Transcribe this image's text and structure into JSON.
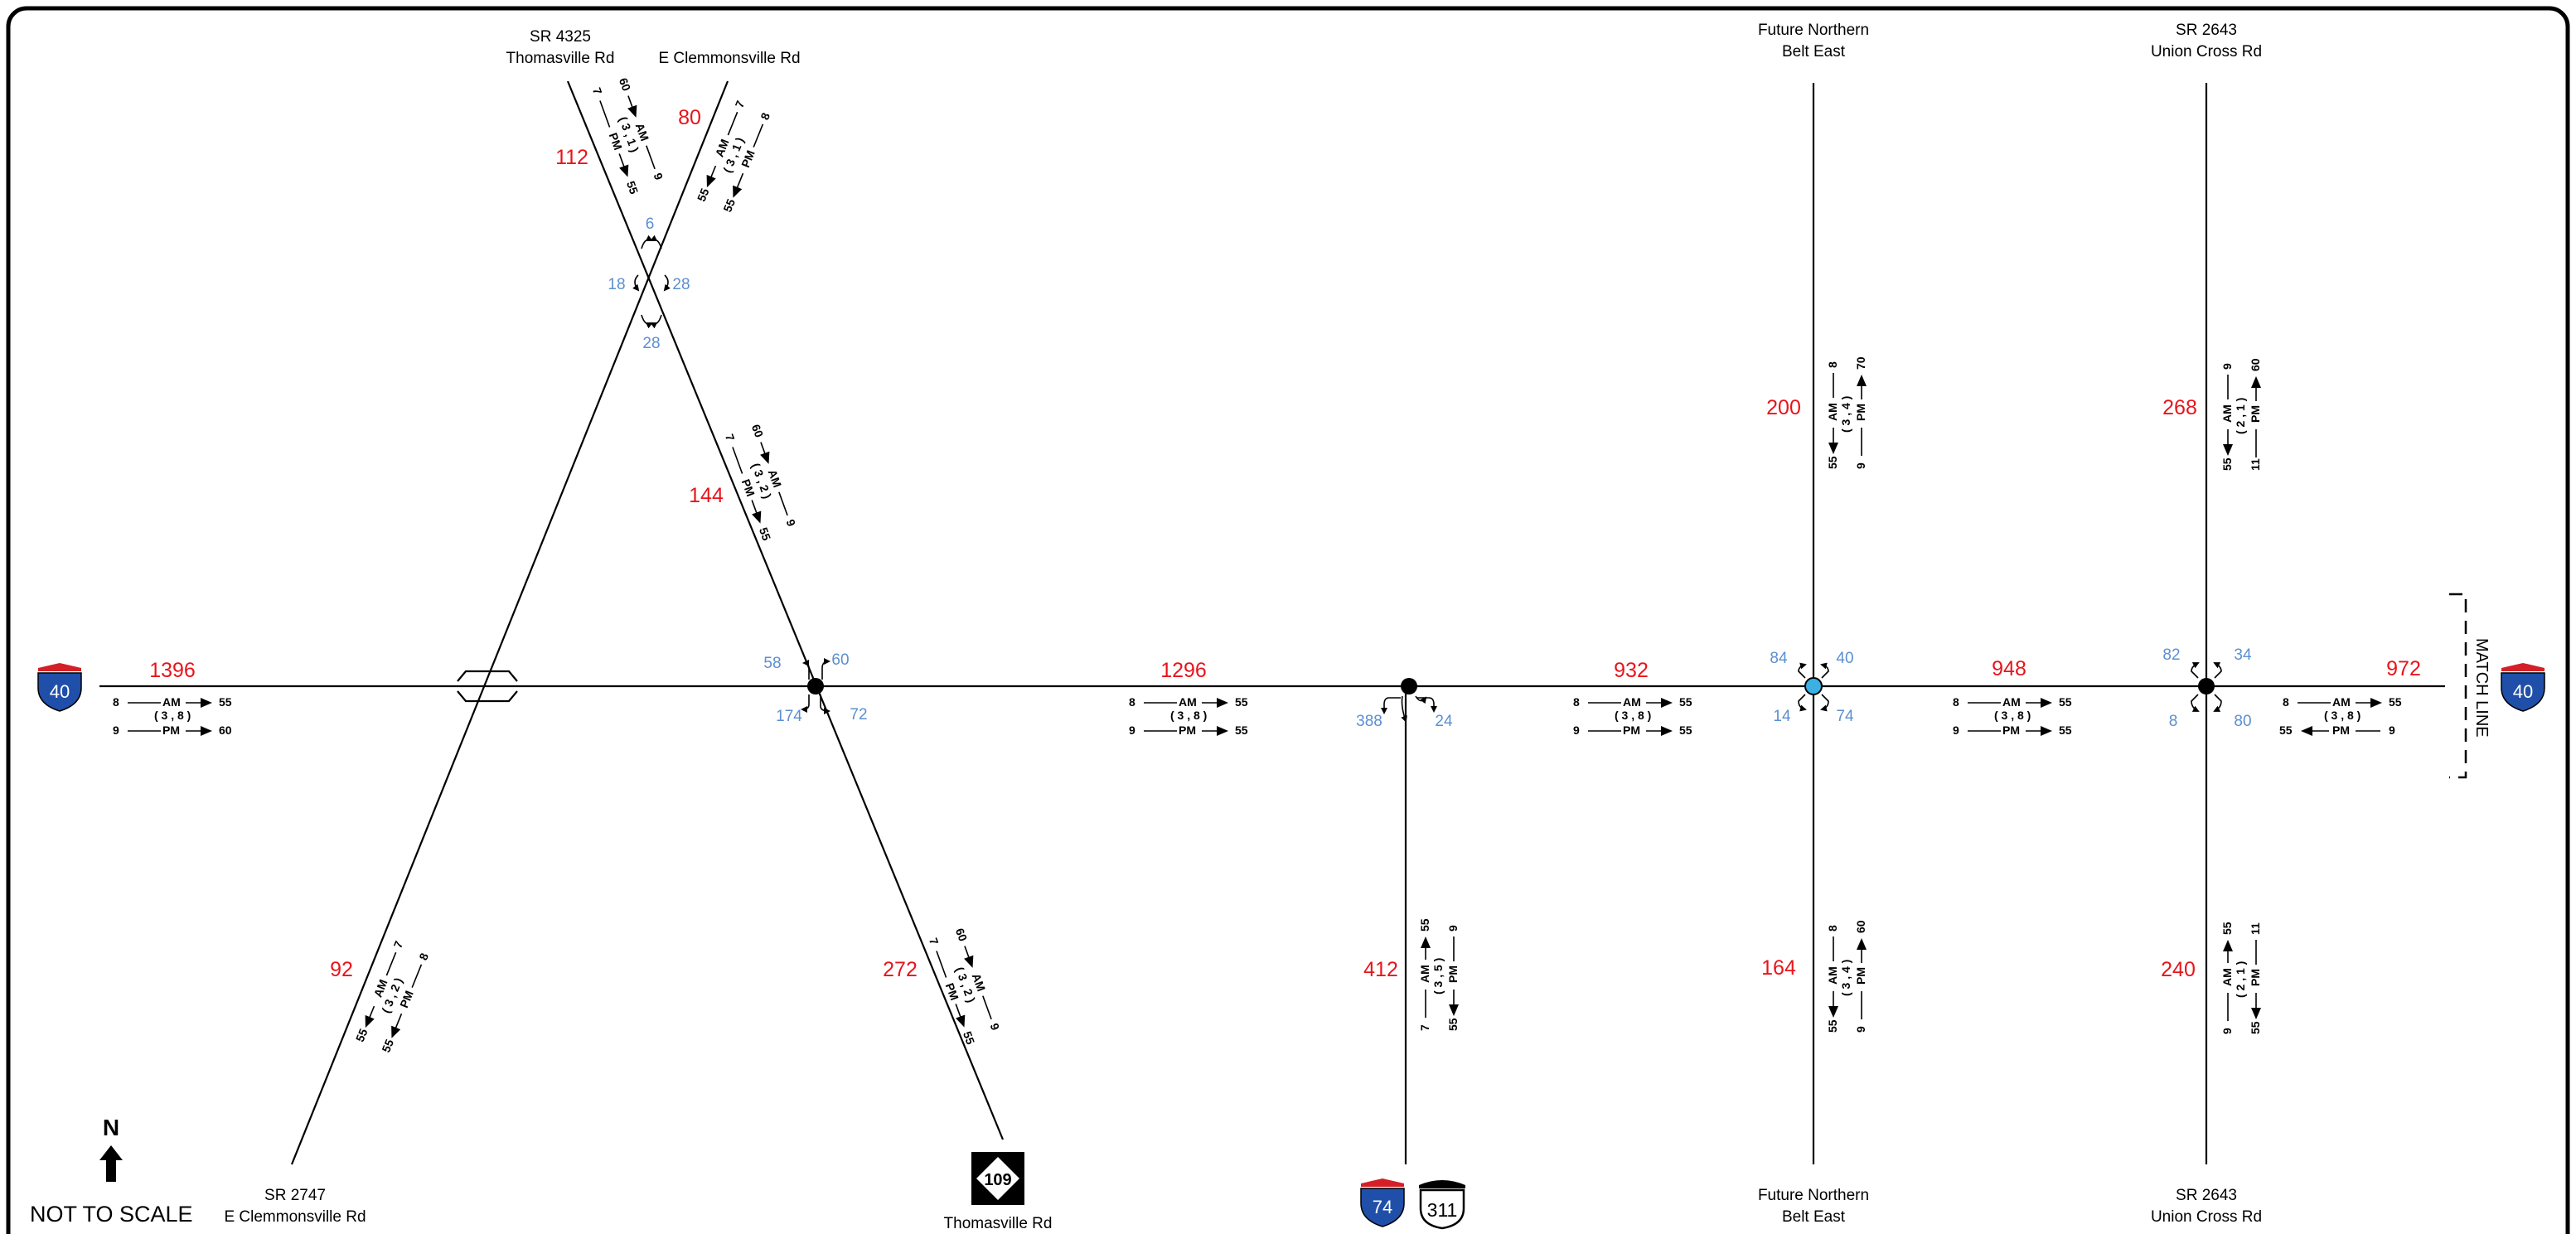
{
  "roads": {
    "sr4325_top": [
      "SR 4325",
      "Thomasville Rd"
    ],
    "e_clemmons_top": [
      "E Clemmonsville Rd"
    ],
    "future_top": [
      "Future Northern",
      "Belt East"
    ],
    "union_top": [
      "SR 2643",
      "Union Cross Rd"
    ],
    "sr2747_bottom": [
      "SR 2747",
      "E Clemmonsville Rd"
    ],
    "thomasville_bottom": [
      "Thomasville Rd"
    ],
    "future_bottom": [
      "Future Northern",
      "Belt East"
    ],
    "union_bottom": [
      "SR 2643",
      "Union Cross Rd"
    ]
  },
  "shields": {
    "i40_left": "40",
    "i40_right": "40",
    "i74": "74",
    "us311": "311",
    "nc109": "109"
  },
  "north": "N",
  "not_to_scale": "NOT TO SCALE",
  "match_line": "MATCH LINE",
  "peak": {
    "am": "AM",
    "pm": "PM"
  },
  "volumes": {
    "i40_w": "1396",
    "i40_b": "1296",
    "i40_c": "932",
    "i40_d": "948",
    "i40_e": "972",
    "sr4325_n": "112",
    "eclem_n": "80",
    "thom_mid": "144",
    "sr2747_s": "92",
    "thom_s": "272",
    "i74_s": "412",
    "future_n": "200",
    "future_s": "164",
    "union_n": "268",
    "union_s": "240"
  },
  "turns": {
    "x1_n": "6",
    "x1_w": "18",
    "x1_e": "28",
    "x1_s": "28",
    "x2_nw": "58",
    "x2_ne": "60",
    "x2_sw": "174",
    "x2_se": "72",
    "x3_sw": "388",
    "x3_se": "24",
    "x4_nw": "84",
    "x4_ne": "40",
    "x4_sw": "14",
    "x4_se": "74",
    "x5_nw": "82",
    "x5_ne": "34",
    "x5_sw": "8",
    "x5_se": "80"
  },
  "ksd": {
    "i40_w": {
      "k1": "8",
      "d": "55",
      "pair": "( 3 , 8 )",
      "k2": "9",
      "d2": "60"
    },
    "i40_b": {
      "k1": "8",
      "d": "55",
      "pair": "( 3 , 8 )",
      "k2": "9",
      "d2": "55"
    },
    "i40_c": {
      "k1": "8",
      "d": "55",
      "pair": "( 3 , 8 )",
      "k2": "9",
      "d2": "55"
    },
    "i40_d": {
      "k1": "8",
      "d": "55",
      "pair": "( 3 , 8 )",
      "k2": "9",
      "d2": "55"
    },
    "i40_e": {
      "k1": "8",
      "d": "55",
      "pair": "( 3 , 8 )",
      "k2": "55",
      "d2": "9"
    },
    "sr4325": {
      "a": "60",
      "b": "9",
      "pair": "( 3 , 1 )",
      "c": "7",
      "d": "55"
    },
    "eclem": {
      "a": "55",
      "b": "7",
      "pair": "( 3 , 1 )",
      "c": "55",
      "d": "8"
    },
    "thom_mid": {
      "a": "60",
      "b": "9",
      "pair": "( 3 , 2 )",
      "c": "7",
      "d": "55"
    },
    "sr2747": {
      "a": "55",
      "b": "7",
      "pair": "( 3 , 2 )",
      "c": "55",
      "d": "8"
    },
    "thom_s": {
      "a": "60",
      "b": "9",
      "pair": "( 3 , 2 )",
      "c": "7",
      "d": "55"
    },
    "i74": {
      "a": "7",
      "b": "55",
      "pair": "( 3 , 5 )",
      "c": "55",
      "d": "9"
    },
    "future_n": {
      "a": "55",
      "b": "8",
      "pair": "( 3 , 4 )",
      "c": "9",
      "d": "70"
    },
    "future_s": {
      "a": "55",
      "b": "8",
      "pair": "( 3 , 4 )",
      "c": "9",
      "d": "60"
    },
    "union_n": {
      "a": "55",
      "b": "9",
      "pair": "( 2 , 1 )",
      "c": "11",
      "d": "60"
    },
    "union_s": {
      "a": "9",
      "b": "55",
      "pair": "( 2 , 1 )",
      "c": "55",
      "d": "11"
    }
  }
}
